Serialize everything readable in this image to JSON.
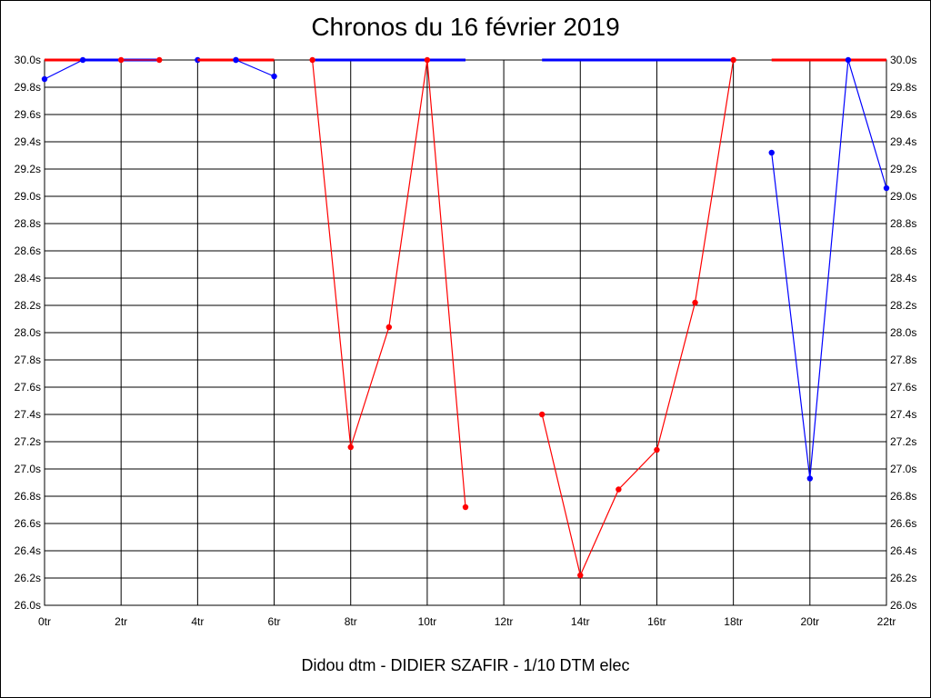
{
  "chart_data": {
    "type": "line",
    "title": "Chronos du 16 février 2019",
    "caption": "Didou dtm - DIDIER SZAFIR - 1/10 DTM elec",
    "xlim": [
      0,
      22
    ],
    "ylim": [
      26.0,
      30.0
    ],
    "x_ticks": [
      "0tr",
      "2tr",
      "4tr",
      "6tr",
      "8tr",
      "10tr",
      "12tr",
      "14tr",
      "16tr",
      "18tr",
      "20tr",
      "22tr"
    ],
    "y_ticks": [
      "30.0s",
      "29.8s",
      "29.6s",
      "29.4s",
      "29.2s",
      "29.0s",
      "28.8s",
      "28.6s",
      "28.4s",
      "28.2s",
      "28.0s",
      "27.8s",
      "27.6s",
      "27.4s",
      "27.2s",
      "27.0s",
      "26.8s",
      "26.6s",
      "26.4s",
      "26.2s",
      "26.0s"
    ],
    "grid": true,
    "colors": {
      "red": "#ff0000",
      "blue": "#0000ff"
    },
    "series": [
      {
        "color": "red",
        "x": [
          0,
          1
        ],
        "y": [
          30.0,
          30.0
        ],
        "markers": false
      },
      {
        "color": "blue",
        "x": [
          0,
          1
        ],
        "y": [
          29.86,
          30.0
        ],
        "markers": [
          0,
          1
        ]
      },
      {
        "color": "blue",
        "x": [
          1,
          3
        ],
        "y": [
          30.0,
          30.0
        ],
        "markers": false
      },
      {
        "color": "red",
        "x": [
          2,
          3
        ],
        "y": [
          30.0,
          30.0
        ],
        "markers": [
          0,
          1
        ]
      },
      {
        "color": "blue",
        "x": [
          4,
          5
        ],
        "y": [
          30.0,
          30.0
        ],
        "markers": [
          0,
          1
        ]
      },
      {
        "color": "red",
        "x": [
          4,
          6
        ],
        "y": [
          30.0,
          30.0
        ],
        "markers": false
      },
      {
        "color": "blue",
        "x": [
          5,
          6
        ],
        "y": [
          30.0,
          29.88
        ],
        "markers": [
          0,
          1
        ]
      },
      {
        "color": "blue",
        "x": [
          7,
          11
        ],
        "y": [
          30.0,
          30.0
        ],
        "markers": false
      },
      {
        "color": "red",
        "x": [
          7,
          8,
          9,
          10,
          11
        ],
        "y": [
          30.0,
          27.16,
          28.04,
          30.0,
          26.72
        ],
        "markers": [
          0,
          1,
          2,
          3,
          4
        ]
      },
      {
        "color": "blue",
        "x": [
          13,
          18
        ],
        "y": [
          30.0,
          30.0
        ],
        "markers": false
      },
      {
        "color": "red",
        "x": [
          13,
          14,
          15,
          16,
          17,
          18
        ],
        "y": [
          27.4,
          26.22,
          26.85,
          27.14,
          28.22,
          30.0
        ],
        "markers": [
          0,
          1,
          2,
          3,
          4,
          5
        ]
      },
      {
        "color": "red",
        "x": [
          19,
          22
        ],
        "y": [
          30.0,
          30.0
        ],
        "markers": false
      },
      {
        "color": "blue",
        "x": [
          19,
          20,
          21,
          22
        ],
        "y": [
          29.32,
          26.93,
          30.0,
          29.06
        ],
        "markers": [
          0,
          1,
          2,
          3
        ]
      }
    ]
  }
}
